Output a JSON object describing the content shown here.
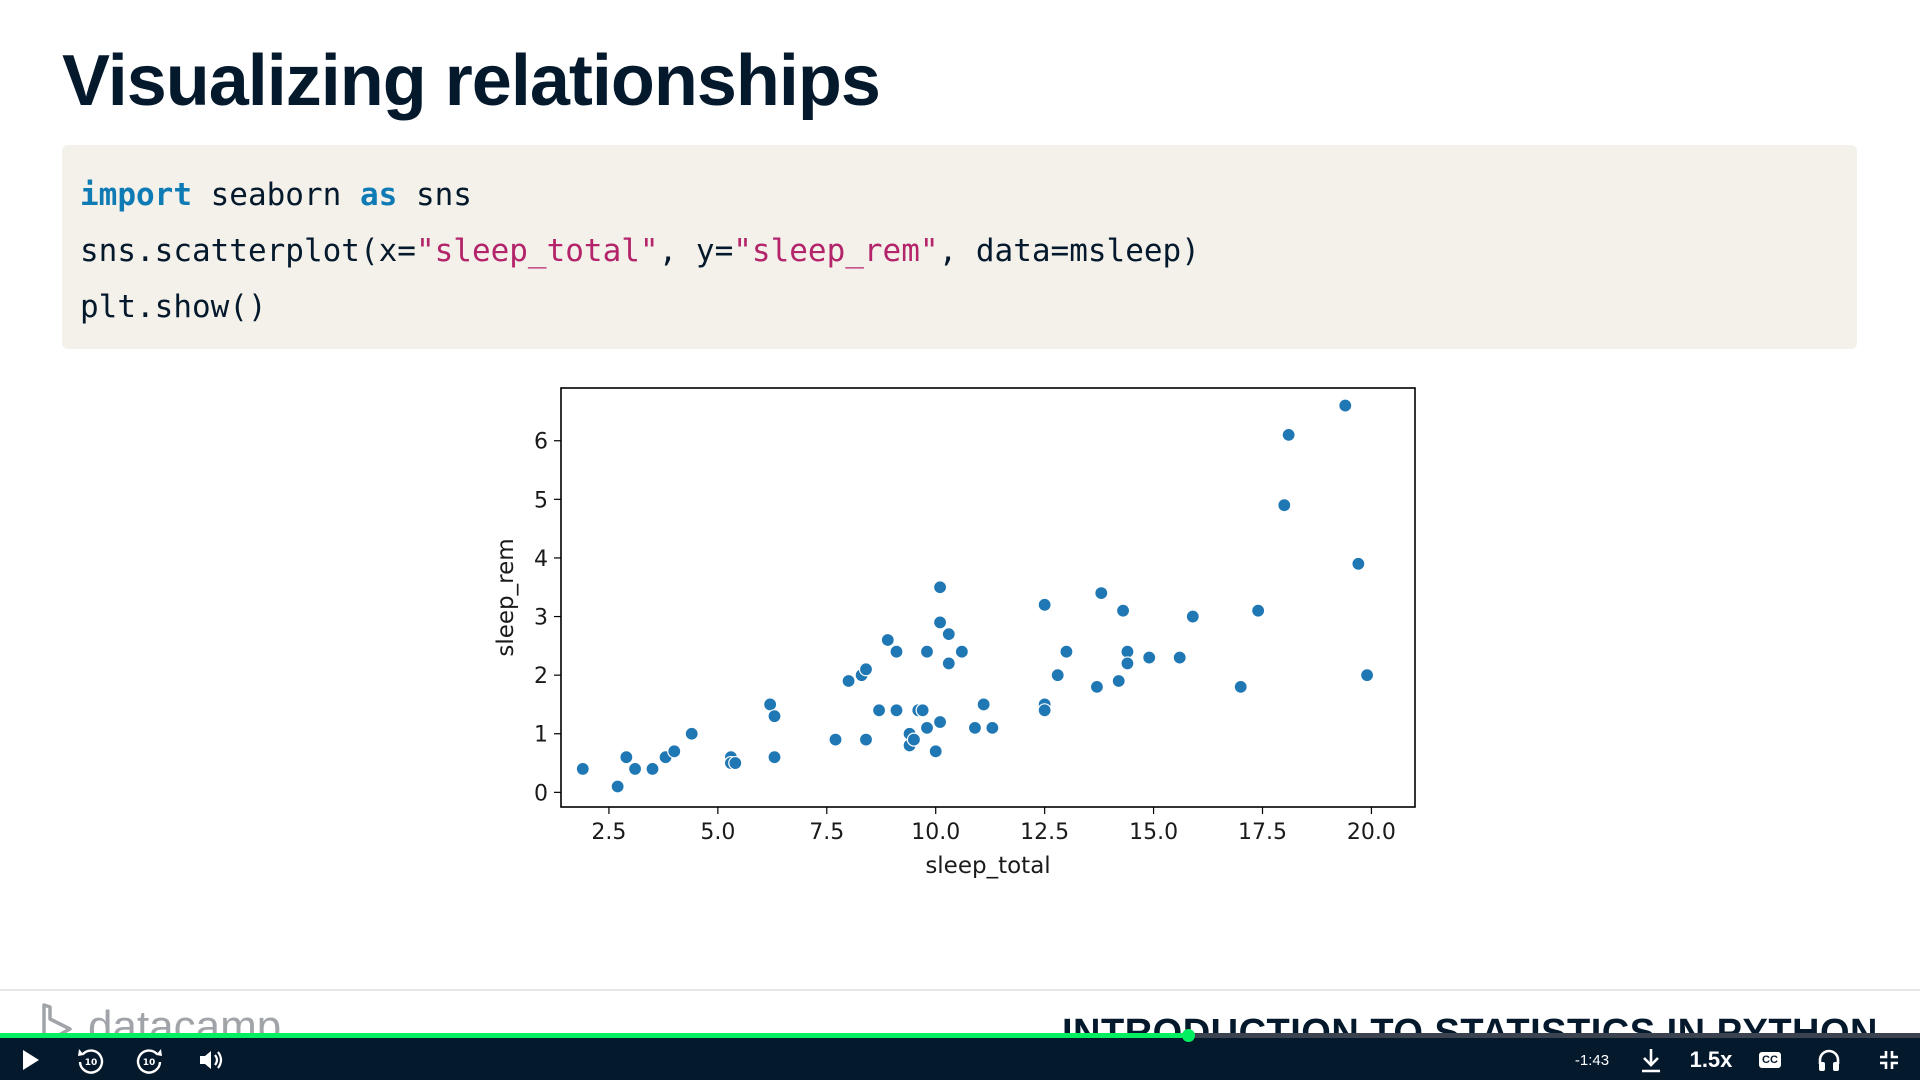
{
  "slide": {
    "title": "Visualizing relationships",
    "code": {
      "line1": {
        "kw1": "import",
        "t1": " seaborn ",
        "kw2": "as",
        "t2": " sns"
      },
      "line2": {
        "t1": "sns.scatterplot(x=",
        "s1": "\"sleep_total\"",
        "t2": ", y=",
        "s2": "\"sleep_rem\"",
        "t3": ", data=msleep)"
      },
      "line3": {
        "t1": "plt.show()"
      }
    }
  },
  "chart_data": {
    "type": "scatter",
    "xlabel": "sleep_total",
    "ylabel": "sleep_rem",
    "xlim": [
      1.4,
      21.0
    ],
    "ylim": [
      -0.25,
      6.9
    ],
    "xticks": [
      "2.5",
      "5.0",
      "7.5",
      "10.0",
      "12.5",
      "15.0",
      "17.5",
      "20.0"
    ],
    "yticks": [
      "0",
      "1",
      "2",
      "3",
      "4",
      "5",
      "6"
    ],
    "grid": false,
    "point_color": "#1f77b4",
    "points": [
      [
        1.9,
        0.4
      ],
      [
        2.7,
        0.1
      ],
      [
        2.9,
        0.6
      ],
      [
        3.1,
        0.4
      ],
      [
        3.5,
        0.4
      ],
      [
        3.8,
        0.6
      ],
      [
        4.0,
        0.7
      ],
      [
        4.4,
        1.0
      ],
      [
        5.3,
        0.6
      ],
      [
        5.3,
        0.5
      ],
      [
        5.4,
        0.5
      ],
      [
        6.2,
        1.5
      ],
      [
        6.3,
        1.3
      ],
      [
        6.3,
        0.6
      ],
      [
        7.7,
        0.9
      ],
      [
        8.0,
        1.9
      ],
      [
        8.3,
        2.0
      ],
      [
        8.4,
        2.1
      ],
      [
        8.4,
        0.9
      ],
      [
        8.7,
        1.4
      ],
      [
        8.9,
        2.6
      ],
      [
        9.1,
        2.4
      ],
      [
        9.1,
        1.4
      ],
      [
        9.4,
        0.8
      ],
      [
        9.4,
        1.0
      ],
      [
        9.5,
        0.9
      ],
      [
        9.6,
        1.4
      ],
      [
        9.7,
        1.4
      ],
      [
        9.8,
        1.1
      ],
      [
        9.8,
        2.4
      ],
      [
        10.0,
        0.7
      ],
      [
        10.1,
        1.2
      ],
      [
        10.1,
        2.9
      ],
      [
        10.1,
        3.5
      ],
      [
        10.3,
        2.2
      ],
      [
        10.3,
        2.7
      ],
      [
        10.6,
        2.4
      ],
      [
        10.9,
        1.1
      ],
      [
        11.1,
        1.5
      ],
      [
        11.3,
        1.1
      ],
      [
        12.5,
        1.5
      ],
      [
        12.5,
        1.4
      ],
      [
        12.5,
        3.2
      ],
      [
        12.8,
        2.0
      ],
      [
        13.0,
        2.4
      ],
      [
        13.7,
        1.8
      ],
      [
        13.8,
        3.4
      ],
      [
        14.2,
        1.9
      ],
      [
        14.3,
        3.1
      ],
      [
        14.4,
        2.4
      ],
      [
        14.4,
        2.2
      ],
      [
        14.9,
        2.3
      ],
      [
        15.6,
        2.3
      ],
      [
        15.9,
        3.0
      ],
      [
        17.0,
        1.8
      ],
      [
        17.4,
        3.1
      ],
      [
        18.0,
        4.9
      ],
      [
        18.1,
        6.1
      ],
      [
        19.4,
        6.6
      ],
      [
        19.7,
        3.9
      ],
      [
        19.9,
        2.0
      ]
    ]
  },
  "footer": {
    "logo_text": "datacamp",
    "course_title": "INTRODUCTION TO STATISTICS IN PYTHON"
  },
  "player": {
    "progress": 0.619,
    "time_remaining": "-1:43",
    "speed": "1.5x",
    "cc_label": "CC",
    "icons": [
      "play-icon",
      "rewind-10-icon",
      "forward-10-icon",
      "volume-icon",
      "download-icon",
      "captions-icon",
      "headphones-icon",
      "fullscreen-exit-icon"
    ],
    "accent_color": "#03ef62"
  }
}
